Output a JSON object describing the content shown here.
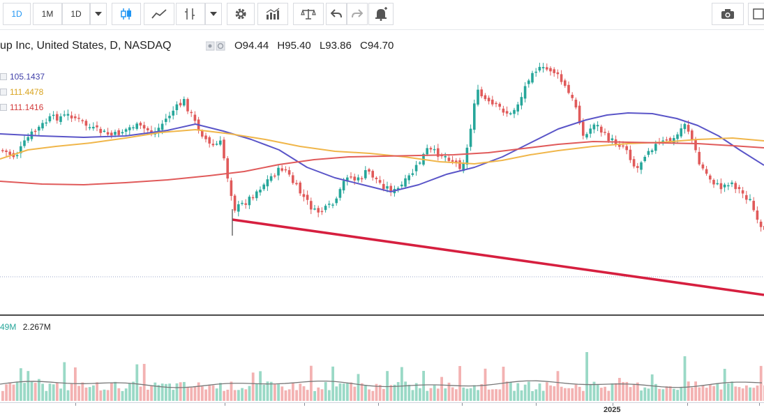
{
  "toolbar": {
    "intervals": [
      "1D",
      "1M",
      "1D"
    ],
    "active_interval_index": 0
  },
  "legend": {
    "symbol": "up Inc, United States, D, NASDAQ",
    "open": "O94.44",
    "high": "H95.40",
    "low": "L93.86",
    "close": "C94.70",
    "ma": [
      {
        "value": "105.1437",
        "color": "#3f3fa8"
      },
      {
        "value": "111.4478",
        "color": "#d9a420"
      },
      {
        "value": "111.1416",
        "color": "#d23a3a"
      }
    ]
  },
  "volume_legend": {
    "first": "49M",
    "second": "2.267M",
    "first_color": "#26a69a"
  },
  "time_axis": {
    "label_2025": "2025"
  },
  "colors": {
    "up": "#26a69a",
    "down": "#e05a5a",
    "up_vol": "#9ad9c6",
    "down_vol": "#f3b2b2",
    "trendline": "#d61f3f"
  }
}
